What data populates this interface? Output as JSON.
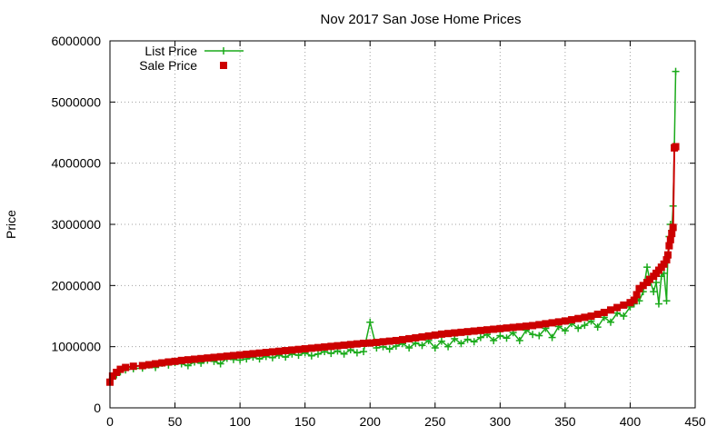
{
  "chart_data": {
    "type": "line",
    "title": "Nov 2017 San Jose Home Prices",
    "xlabel": "",
    "ylabel": "Price",
    "xlim": [
      0,
      450
    ],
    "ylim": [
      0,
      6000000
    ],
    "xticks": [
      0,
      50,
      100,
      150,
      200,
      250,
      300,
      350,
      400,
      450
    ],
    "yticks": [
      0,
      1000000,
      2000000,
      3000000,
      4000000,
      5000000,
      6000000
    ],
    "xtick_labels": [
      "0",
      "50",
      "100",
      "150",
      "200",
      "250",
      "300",
      "350",
      "400",
      "450"
    ],
    "ytick_labels": [
      "0",
      "1000000",
      "2000000",
      "3000000",
      "4000000",
      "5000000",
      "6000000"
    ],
    "grid": true,
    "legend_position": "top-left",
    "series": [
      {
        "name": "List Price",
        "color": "#1aaa1a",
        "marker": "plus",
        "x": [
          0,
          2,
          5,
          8,
          12,
          18,
          25,
          30,
          35,
          40,
          45,
          50,
          55,
          60,
          65,
          70,
          75,
          80,
          85,
          90,
          95,
          100,
          105,
          110,
          115,
          120,
          125,
          130,
          135,
          140,
          145,
          150,
          155,
          160,
          165,
          170,
          175,
          180,
          185,
          190,
          195,
          200,
          205,
          210,
          215,
          220,
          225,
          230,
          235,
          240,
          245,
          250,
          255,
          260,
          265,
          270,
          275,
          280,
          285,
          290,
          295,
          300,
          305,
          310,
          315,
          320,
          325,
          330,
          335,
          340,
          345,
          350,
          355,
          360,
          365,
          370,
          375,
          380,
          385,
          390,
          395,
          400,
          403,
          405,
          407,
          410,
          413,
          415,
          418,
          420,
          422,
          424,
          426,
          428,
          429,
          430,
          431,
          432,
          433,
          434,
          435
        ],
        "values": [
          420000,
          480000,
          540000,
          590000,
          620000,
          640000,
          650000,
          700000,
          660000,
          730000,
          700000,
          740000,
          720000,
          690000,
          750000,
          730000,
          780000,
          760000,
          720000,
          810000,
          790000,
          780000,
          800000,
          830000,
          800000,
          840000,
          820000,
          860000,
          830000,
          880000,
          860000,
          900000,
          850000,
          880000,
          920000,
          890000,
          930000,
          880000,
          950000,
          900000,
          920000,
          1400000,
          980000,
          1000000,
          960000,
          1010000,
          1050000,
          980000,
          1060000,
          1020000,
          1100000,
          980000,
          1090000,
          1000000,
          1130000,
          1050000,
          1120000,
          1080000,
          1150000,
          1200000,
          1100000,
          1180000,
          1140000,
          1230000,
          1100000,
          1270000,
          1200000,
          1180000,
          1300000,
          1150000,
          1330000,
          1260000,
          1380000,
          1300000,
          1350000,
          1420000,
          1320000,
          1480000,
          1400000,
          1550000,
          1500000,
          1650000,
          1700000,
          1800000,
          1750000,
          1900000,
          2300000,
          2100000,
          1900000,
          2050000,
          1700000,
          2150000,
          2200000,
          1750000,
          2500000,
          2800000,
          3000000,
          2900000,
          3300000,
          4300000,
          5500000
        ]
      },
      {
        "name": "Sale Price",
        "color": "#cc0000",
        "marker": "square",
        "x": [
          0,
          2,
          5,
          8,
          12,
          18,
          25,
          30,
          35,
          40,
          45,
          50,
          55,
          60,
          65,
          70,
          75,
          80,
          85,
          90,
          95,
          100,
          105,
          110,
          115,
          120,
          125,
          130,
          135,
          140,
          145,
          150,
          155,
          160,
          165,
          170,
          175,
          180,
          185,
          190,
          195,
          200,
          205,
          210,
          215,
          220,
          225,
          230,
          235,
          240,
          245,
          250,
          255,
          260,
          265,
          270,
          275,
          280,
          285,
          290,
          295,
          300,
          305,
          310,
          315,
          320,
          325,
          330,
          335,
          340,
          345,
          350,
          355,
          360,
          365,
          370,
          375,
          380,
          385,
          390,
          395,
          400,
          403,
          405,
          407,
          410,
          413,
          415,
          418,
          420,
          422,
          424,
          426,
          428,
          429,
          430,
          431,
          432,
          433,
          434,
          435
        ],
        "values": [
          420000,
          520000,
          580000,
          630000,
          660000,
          680000,
          690000,
          705000,
          720000,
          735000,
          750000,
          760000,
          775000,
          785000,
          795000,
          805000,
          815000,
          825000,
          835000,
          845000,
          855000,
          865000,
          875000,
          885000,
          895000,
          905000,
          915000,
          925000,
          935000,
          945000,
          955000,
          965000,
          975000,
          985000,
          995000,
          1005000,
          1015000,
          1025000,
          1035000,
          1045000,
          1055000,
          1060000,
          1070000,
          1080000,
          1090000,
          1100000,
          1115000,
          1130000,
          1145000,
          1160000,
          1175000,
          1190000,
          1205000,
          1215000,
          1225000,
          1235000,
          1245000,
          1255000,
          1265000,
          1275000,
          1285000,
          1295000,
          1305000,
          1315000,
          1325000,
          1335000,
          1345000,
          1360000,
          1375000,
          1390000,
          1405000,
          1420000,
          1440000,
          1460000,
          1480000,
          1500000,
          1530000,
          1560000,
          1600000,
          1640000,
          1680000,
          1720000,
          1760000,
          1850000,
          1950000,
          2000000,
          2050000,
          2100000,
          2150000,
          2200000,
          2250000,
          2300000,
          2350000,
          2420000,
          2500000,
          2650000,
          2750000,
          2850000,
          2950000,
          4250000,
          4270000
        ]
      }
    ]
  }
}
